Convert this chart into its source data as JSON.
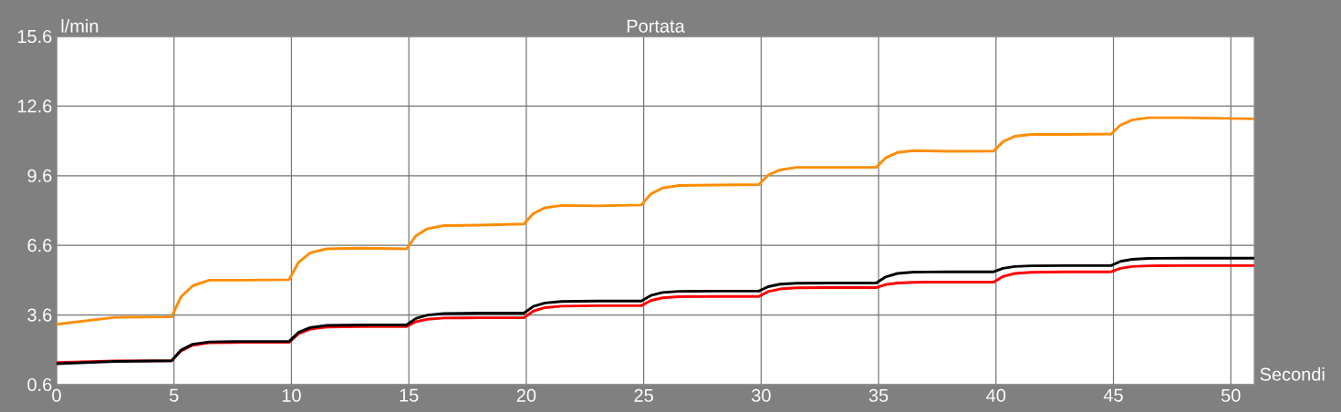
{
  "chart_data": {
    "type": "line",
    "title": "Portata",
    "xlabel": "Secondi",
    "ylabel": "l/min",
    "xlim": [
      0,
      51
    ],
    "ylim": [
      0.6,
      15.6
    ],
    "xticks": [
      0,
      5,
      10,
      15,
      20,
      25,
      30,
      35,
      40,
      45,
      50
    ],
    "yticks": [
      0.6,
      3.6,
      6.6,
      9.6,
      12.6,
      15.6
    ],
    "grid": true,
    "marker": "none",
    "line_style": "solid",
    "x": [
      0,
      2.5,
      4.9,
      5.3,
      5.8,
      6.5,
      8,
      9.9,
      10.3,
      10.8,
      11.5,
      13,
      14.9,
      15.3,
      15.8,
      16.5,
      18,
      19.9,
      20.3,
      20.8,
      21.5,
      23,
      24.9,
      25.3,
      25.8,
      26.5,
      28,
      29.9,
      30.3,
      30.8,
      31.5,
      33,
      34.9,
      35.3,
      35.8,
      36.5,
      38,
      39.9,
      40.3,
      40.8,
      41.5,
      43,
      44.9,
      45.3,
      45.8,
      46.5,
      48,
      51
    ],
    "series": [
      {
        "color": "#ff8c00",
        "values": [
          3.2,
          3.5,
          3.52,
          4.39,
          4.86,
          5.1,
          5.1,
          5.12,
          5.87,
          6.28,
          6.45,
          6.48,
          6.45,
          7.01,
          7.32,
          7.45,
          7.47,
          7.52,
          7.97,
          8.22,
          8.32,
          8.3,
          8.34,
          8.81,
          9.07,
          9.18,
          9.2,
          9.22,
          9.63,
          9.85,
          9.96,
          9.96,
          9.96,
          10.37,
          10.6,
          10.68,
          10.65,
          10.66,
          11.07,
          11.3,
          11.38,
          11.38,
          11.4,
          11.78,
          12.0,
          12.1,
          12.1,
          12.05
        ]
      },
      {
        "color": "#ff0000",
        "values": [
          1.55,
          1.62,
          1.63,
          2.06,
          2.3,
          2.4,
          2.42,
          2.42,
          2.79,
          2.99,
          3.08,
          3.1,
          3.1,
          3.31,
          3.42,
          3.47,
          3.48,
          3.48,
          3.77,
          3.92,
          3.98,
          4.0,
          4.0,
          4.22,
          4.34,
          4.39,
          4.4,
          4.4,
          4.61,
          4.72,
          4.77,
          4.78,
          4.78,
          4.91,
          4.98,
          5.01,
          5.02,
          5.02,
          5.26,
          5.39,
          5.44,
          5.46,
          5.46,
          5.61,
          5.69,
          5.72,
          5.73,
          5.73
        ]
      },
      {
        "color": "#000000",
        "values": [
          1.5,
          1.6,
          1.63,
          2.09,
          2.34,
          2.44,
          2.46,
          2.46,
          2.85,
          3.06,
          3.15,
          3.17,
          3.17,
          3.45,
          3.6,
          3.66,
          3.68,
          3.68,
          3.97,
          4.12,
          4.18,
          4.2,
          4.2,
          4.44,
          4.57,
          4.62,
          4.63,
          4.63,
          4.82,
          4.93,
          4.97,
          4.98,
          4.98,
          5.24,
          5.39,
          5.45,
          5.46,
          5.46,
          5.61,
          5.69,
          5.72,
          5.73,
          5.73,
          5.91,
          6.0,
          6.04,
          6.05,
          6.05
        ]
      }
    ]
  }
}
